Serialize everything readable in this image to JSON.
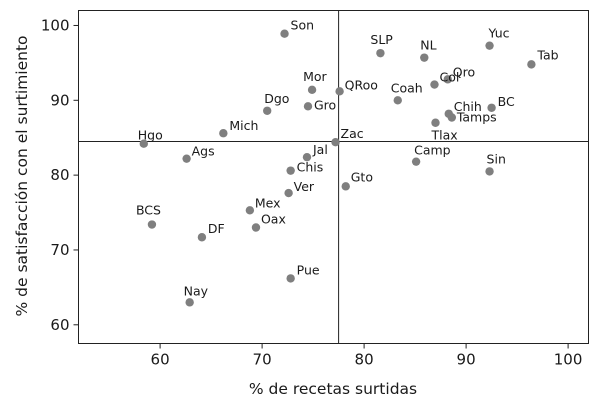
{
  "chart_data": {
    "type": "scatter",
    "xlabel": "% de recetas surtidas",
    "ylabel": "% de satisfacción con el surtimiento",
    "xlim": [
      52,
      102
    ],
    "ylim": [
      57.5,
      102
    ],
    "xticks": [
      60,
      70,
      80,
      90,
      100
    ],
    "yticks": [
      60,
      70,
      80,
      90,
      100
    ],
    "reference_lines": {
      "x": 77.5,
      "y": 84.5
    },
    "point_color": "#7f7f7f",
    "points": [
      {
        "label": "Son",
        "x": 72.2,
        "y": 98.9
      },
      {
        "label": "SLP",
        "x": 81.6,
        "y": 96.3
      },
      {
        "label": "NL",
        "x": 85.9,
        "y": 95.7
      },
      {
        "label": "Yuc",
        "x": 92.3,
        "y": 97.3
      },
      {
        "label": "Tab",
        "x": 96.4,
        "y": 94.8
      },
      {
        "label": "Qro",
        "x": 88.2,
        "y": 92.8
      },
      {
        "label": "Mor",
        "x": 74.9,
        "y": 91.4
      },
      {
        "label": "QRoo",
        "x": 77.6,
        "y": 91.2
      },
      {
        "label": "Coah",
        "x": 83.3,
        "y": 90.0
      },
      {
        "label": "Col",
        "x": 86.9,
        "y": 92.1
      },
      {
        "label": "BC",
        "x": 92.5,
        "y": 89.0
      },
      {
        "label": "Dgo",
        "x": 70.5,
        "y": 88.6
      },
      {
        "label": "Gro",
        "x": 74.5,
        "y": 89.2
      },
      {
        "label": "Chih",
        "x": 88.3,
        "y": 88.2
      },
      {
        "label": "Tamps",
        "x": 88.6,
        "y": 87.7
      },
      {
        "label": "Tlax",
        "x": 87.0,
        "y": 87.0
      },
      {
        "label": "Hgo",
        "x": 58.4,
        "y": 84.2
      },
      {
        "label": "Mich",
        "x": 66.2,
        "y": 85.6
      },
      {
        "label": "Zac",
        "x": 77.2,
        "y": 84.4
      },
      {
        "label": "Ags",
        "x": 62.6,
        "y": 82.2
      },
      {
        "label": "Jal",
        "x": 74.4,
        "y": 82.4
      },
      {
        "label": "Camp",
        "x": 85.1,
        "y": 81.8
      },
      {
        "label": "Chis",
        "x": 72.8,
        "y": 80.6
      },
      {
        "label": "Sin",
        "x": 92.3,
        "y": 80.5
      },
      {
        "label": "Gto",
        "x": 78.2,
        "y": 78.5
      },
      {
        "label": "Ver",
        "x": 72.6,
        "y": 77.6
      },
      {
        "label": "Mex",
        "x": 68.8,
        "y": 75.3
      },
      {
        "label": "BCS",
        "x": 59.2,
        "y": 73.4
      },
      {
        "label": "Oax",
        "x": 69.4,
        "y": 73.0
      },
      {
        "label": "DF",
        "x": 64.1,
        "y": 71.7
      },
      {
        "label": "Pue",
        "x": 72.8,
        "y": 66.2
      },
      {
        "label": "Nay",
        "x": 62.9,
        "y": 63.0
      }
    ]
  }
}
